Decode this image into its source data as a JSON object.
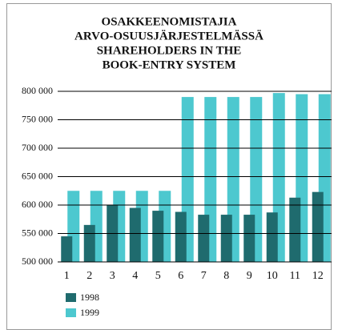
{
  "chart_data": {
    "type": "bar",
    "title": [
      "OSAKKEENOMISTAJIA",
      "ARVO-OSUUSJÄRJESTELMÄSSÄ",
      "SHAREHOLDERS IN THE",
      "BOOK-ENTRY SYSTEM"
    ],
    "categories": [
      "1",
      "2",
      "3",
      "4",
      "5",
      "6",
      "7",
      "8",
      "9",
      "10",
      "11",
      "12"
    ],
    "series": [
      {
        "name": "1998",
        "color": "#1f6b6e",
        "values": [
          545000,
          565000,
          600000,
          595000,
          590000,
          588000,
          583000,
          583000,
          583000,
          587000,
          613000,
          623000
        ]
      },
      {
        "name": "1999",
        "color": "#4dc8cf",
        "values": [
          625000,
          625000,
          625000,
          625000,
          625000,
          790000,
          790000,
          790000,
          790000,
          797000,
          795000,
          795000
        ]
      }
    ],
    "ylim": [
      500000,
      800000
    ],
    "yticks": [
      {
        "value": 500000,
        "label": "500 000"
      },
      {
        "value": 550000,
        "label": "550 000"
      },
      {
        "value": 600000,
        "label": "600 000"
      },
      {
        "value": 650000,
        "label": "650 000"
      },
      {
        "value": 700000,
        "label": "700 000"
      },
      {
        "value": 750000,
        "label": "750 000"
      },
      {
        "value": 800000,
        "label": "800 000"
      }
    ],
    "grid": true
  }
}
